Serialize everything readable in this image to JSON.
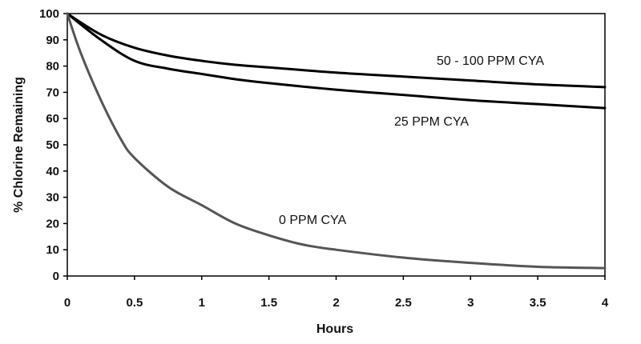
{
  "chart_data": {
    "type": "line",
    "title": "",
    "xlabel": "Hours",
    "ylabel": "% Chlorine Remaining",
    "xlim": [
      0,
      4
    ],
    "ylim": [
      0,
      100
    ],
    "x_ticks": [
      "0",
      "0.5",
      "1",
      "1.5",
      "2",
      "2.5",
      "3",
      "3.5",
      "4"
    ],
    "y_ticks": [
      "0",
      "10",
      "20",
      "30",
      "40",
      "50",
      "60",
      "70",
      "80",
      "90",
      "100"
    ],
    "grid": false,
    "legend": "none",
    "series": [
      {
        "name": "50 - 100 PPM CYA",
        "color": "#000000",
        "x": [
          0,
          0.25,
          0.5,
          0.75,
          1,
          1.25,
          1.5,
          2,
          2.5,
          3,
          3.5,
          4
        ],
        "y": [
          100,
          92,
          87,
          84,
          82,
          80.5,
          79.5,
          77.5,
          76,
          74.5,
          73,
          72
        ]
      },
      {
        "name": "25 PPM CYA",
        "color": "#000000",
        "x": [
          0,
          0.25,
          0.5,
          0.75,
          1,
          1.25,
          1.5,
          2,
          2.5,
          3,
          3.5,
          4
        ],
        "y": [
          100,
          90,
          82,
          79,
          77,
          75,
          73.5,
          71,
          69,
          67,
          65.5,
          64
        ]
      },
      {
        "name": "0 PPM CYA",
        "color": "#555555",
        "x": [
          0,
          0.1,
          0.25,
          0.4,
          0.5,
          0.75,
          1,
          1.25,
          1.5,
          1.75,
          2,
          2.5,
          3,
          3.5,
          4
        ],
        "y": [
          100,
          85,
          67,
          52,
          45,
          34,
          27,
          20,
          15.5,
          12,
          10,
          7,
          5,
          3.5,
          3
        ]
      }
    ]
  }
}
